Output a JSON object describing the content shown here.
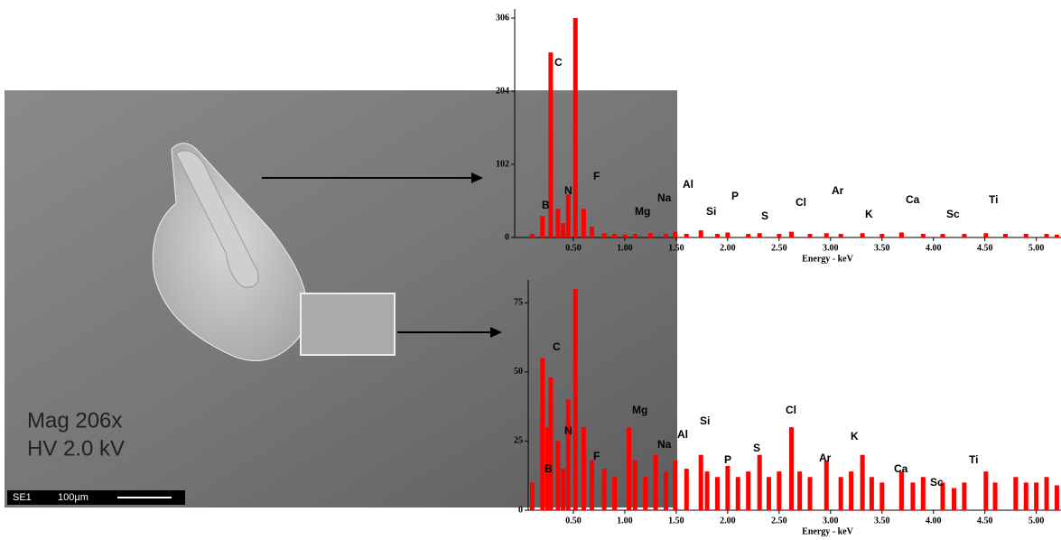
{
  "image": {
    "mag": "Mag 206x",
    "hv": "HV 2.0 kV",
    "detector": "SE1",
    "scale": "100µm"
  },
  "chart_data": [
    {
      "type": "bar",
      "x_label": "Energy - keV",
      "color": "#ff0000",
      "x": [
        0.1,
        0.2,
        0.28,
        0.35,
        0.4,
        0.45,
        0.52,
        0.6,
        0.68,
        0.8,
        0.9,
        1.0,
        1.1,
        1.25,
        1.4,
        1.49,
        1.6,
        1.74,
        1.9,
        2.0,
        2.2,
        2.31,
        2.5,
        2.62,
        2.8,
        2.96,
        3.1,
        3.31,
        3.5,
        3.69,
        3.9,
        4.09,
        4.3,
        4.51,
        4.7,
        4.9,
        5.1,
        5.2
      ],
      "values": [
        5,
        30,
        258,
        40,
        20,
        60,
        306,
        40,
        15,
        6,
        5,
        4,
        5,
        6,
        5,
        8,
        5,
        10,
        5,
        7,
        5,
        6,
        5,
        8,
        5,
        6,
        5,
        6,
        5,
        7,
        5,
        5,
        5,
        6,
        5,
        5,
        5,
        4
      ],
      "xlim": [
        0,
        5.24
      ],
      "xticks": [
        {
          "value": 0.5,
          "label": "0.50"
        },
        {
          "value": 1,
          "label": "1.00"
        },
        {
          "value": 1.5,
          "label": "1.50"
        },
        {
          "value": 2,
          "label": "2.00"
        },
        {
          "value": 2.5,
          "label": "2.50"
        },
        {
          "value": 3,
          "label": "3.00"
        },
        {
          "value": 3.5,
          "label": "3.50"
        },
        {
          "value": 4,
          "label": "4.00"
        },
        {
          "value": 4.5,
          "label": "4.50"
        },
        {
          "value": 5,
          "label": "5.00"
        }
      ],
      "ylim": [
        0,
        306
      ],
      "yticks": [
        0,
        102,
        204,
        306
      ],
      "peak_labels": [
        "C",
        "B",
        "N",
        "F",
        "Mg",
        "Na",
        "Al",
        "Si",
        "P",
        "S",
        "Cl",
        "Ar",
        "K",
        "Ca",
        "Sc",
        "Ti"
      ]
    },
    {
      "type": "bar",
      "x_label": "Energy - keV",
      "color": "#ff0000",
      "x": [
        0.1,
        0.2,
        0.25,
        0.28,
        0.35,
        0.4,
        0.45,
        0.52,
        0.6,
        0.68,
        0.8,
        0.9,
        1.04,
        1.1,
        1.2,
        1.3,
        1.4,
        1.49,
        1.6,
        1.74,
        1.8,
        1.9,
        2.0,
        2.1,
        2.2,
        2.31,
        2.4,
        2.5,
        2.62,
        2.7,
        2.8,
        2.96,
        3.1,
        3.2,
        3.31,
        3.4,
        3.5,
        3.69,
        3.8,
        3.9,
        4.09,
        4.2,
        4.3,
        4.51,
        4.6,
        4.8,
        4.9,
        5.0,
        5.1,
        5.2
      ],
      "values": [
        10,
        55,
        30,
        48,
        25,
        15,
        40,
        80,
        30,
        18,
        15,
        12,
        30,
        18,
        12,
        20,
        14,
        18,
        15,
        20,
        14,
        12,
        16,
        12,
        14,
        20,
        12,
        14,
        30,
        14,
        12,
        18,
        12,
        14,
        20,
        12,
        10,
        14,
        10,
        12,
        10,
        8,
        10,
        14,
        10,
        12,
        10,
        10,
        12,
        9
      ],
      "xlim": [
        0,
        5.24
      ],
      "xticks": [
        {
          "value": 0.5,
          "label": "0.50"
        },
        {
          "value": 1,
          "label": "1.00"
        },
        {
          "value": 1.5,
          "label": "1.50"
        },
        {
          "value": 2,
          "label": "2.00"
        },
        {
          "value": 2.5,
          "label": "2.50"
        },
        {
          "value": 3,
          "label": "3.00"
        },
        {
          "value": 3.5,
          "label": "3.50"
        },
        {
          "value": 4,
          "label": "4.00"
        },
        {
          "value": 4.5,
          "label": "4.50"
        },
        {
          "value": 5,
          "label": "5.00"
        }
      ],
      "ylim": [
        0,
        80
      ],
      "yticks": [
        0,
        25,
        50,
        75
      ],
      "peak_labels": [
        "C",
        "B",
        "N",
        "F",
        "Mg",
        "Na",
        "Al",
        "Si",
        "P",
        "S",
        "Cl",
        "Ar",
        "K",
        "Ca",
        "Sc",
        "Ti"
      ]
    }
  ]
}
